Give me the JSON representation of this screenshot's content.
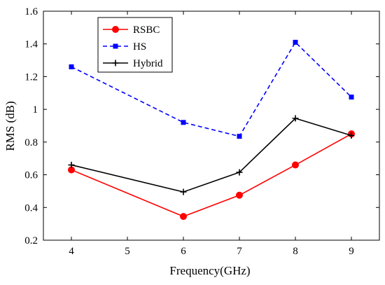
{
  "chart_data": {
    "type": "line",
    "title": "",
    "xlabel": "Frequency(GHz)",
    "ylabel": "RMS (dB)",
    "xlim": [
      3.5,
      9.5
    ],
    "ylim": [
      0.2,
      1.6
    ],
    "xticks": [
      4,
      5,
      6,
      7,
      8,
      9
    ],
    "yticks": [
      0.2,
      0.4,
      0.6,
      0.8,
      1.0,
      1.2,
      1.4,
      1.6
    ],
    "xtick_labels": [
      "4",
      "5",
      "6",
      "7",
      "8",
      "9"
    ],
    "ytick_labels": [
      "0.2",
      "0.4",
      "0.6",
      "0.8",
      "1",
      "1.2",
      "1.4",
      "1.6"
    ],
    "grid": false,
    "legend_position": "top-left",
    "series": [
      {
        "name": "RSBC",
        "color": "#ff0000",
        "line_style": "solid",
        "marker": "circle",
        "x": [
          4,
          6,
          7,
          8,
          9
        ],
        "y": [
          0.63,
          0.345,
          0.475,
          0.66,
          0.85
        ]
      },
      {
        "name": "HS",
        "color": "#0000ff",
        "line_style": "dashed",
        "marker": "square",
        "x": [
          4,
          6,
          7,
          8,
          9
        ],
        "y": [
          1.26,
          0.92,
          0.835,
          1.41,
          1.075
        ]
      },
      {
        "name": "Hybrid",
        "color": "#000000",
        "line_style": "solid",
        "marker": "plus",
        "x": [
          4,
          6,
          7,
          8,
          9
        ],
        "y": [
          0.66,
          0.495,
          0.615,
          0.945,
          0.84
        ]
      }
    ]
  }
}
